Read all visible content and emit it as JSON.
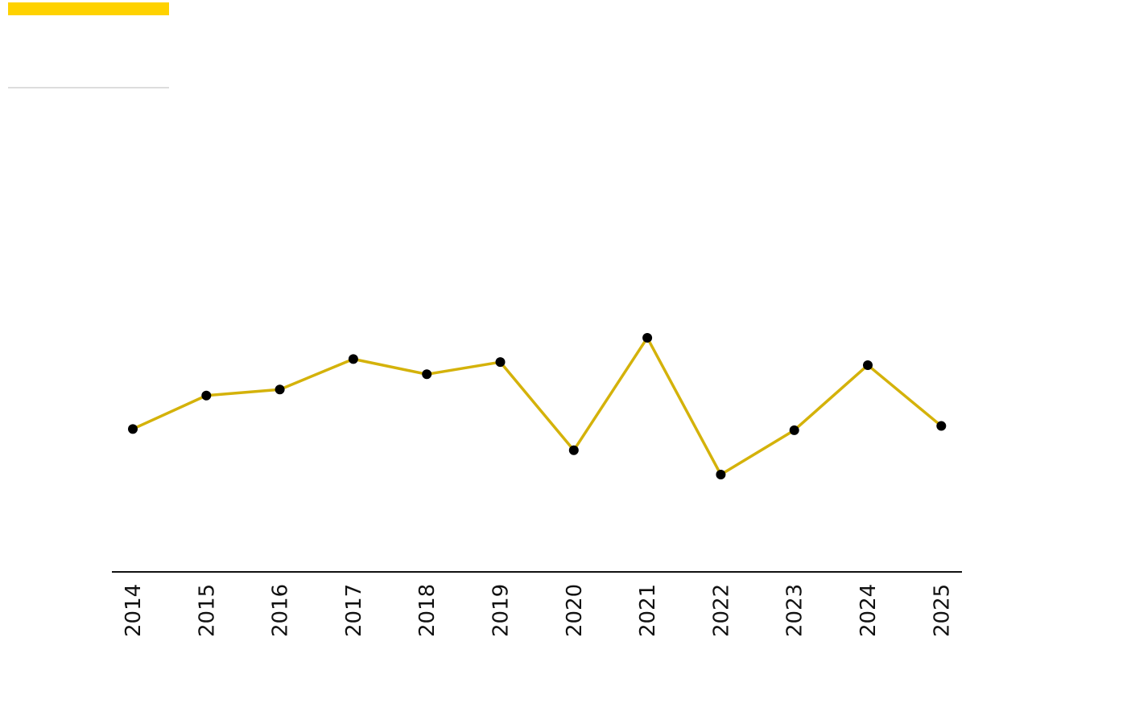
{
  "colors": {
    "accent": "#ffd200",
    "line": "#d4b20a",
    "marker": "#000000",
    "axis": "#111111",
    "rule": "#dddddd"
  },
  "chart_data": {
    "type": "line",
    "title": "",
    "xlabel": "",
    "ylabel": "",
    "categories": [
      "2014",
      "2015",
      "2016",
      "2017",
      "2018",
      "2019",
      "2020",
      "2021",
      "2022",
      "2023",
      "2024",
      "2025"
    ],
    "series": [
      {
        "values": [
          47,
          58,
          60,
          70,
          65,
          69,
          40,
          77,
          32,
          46.6,
          68,
          48
        ]
      }
    ],
    "ylim": [
      0,
      150
    ],
    "grid": false,
    "legend": "none",
    "y_axis_visible": false
  }
}
